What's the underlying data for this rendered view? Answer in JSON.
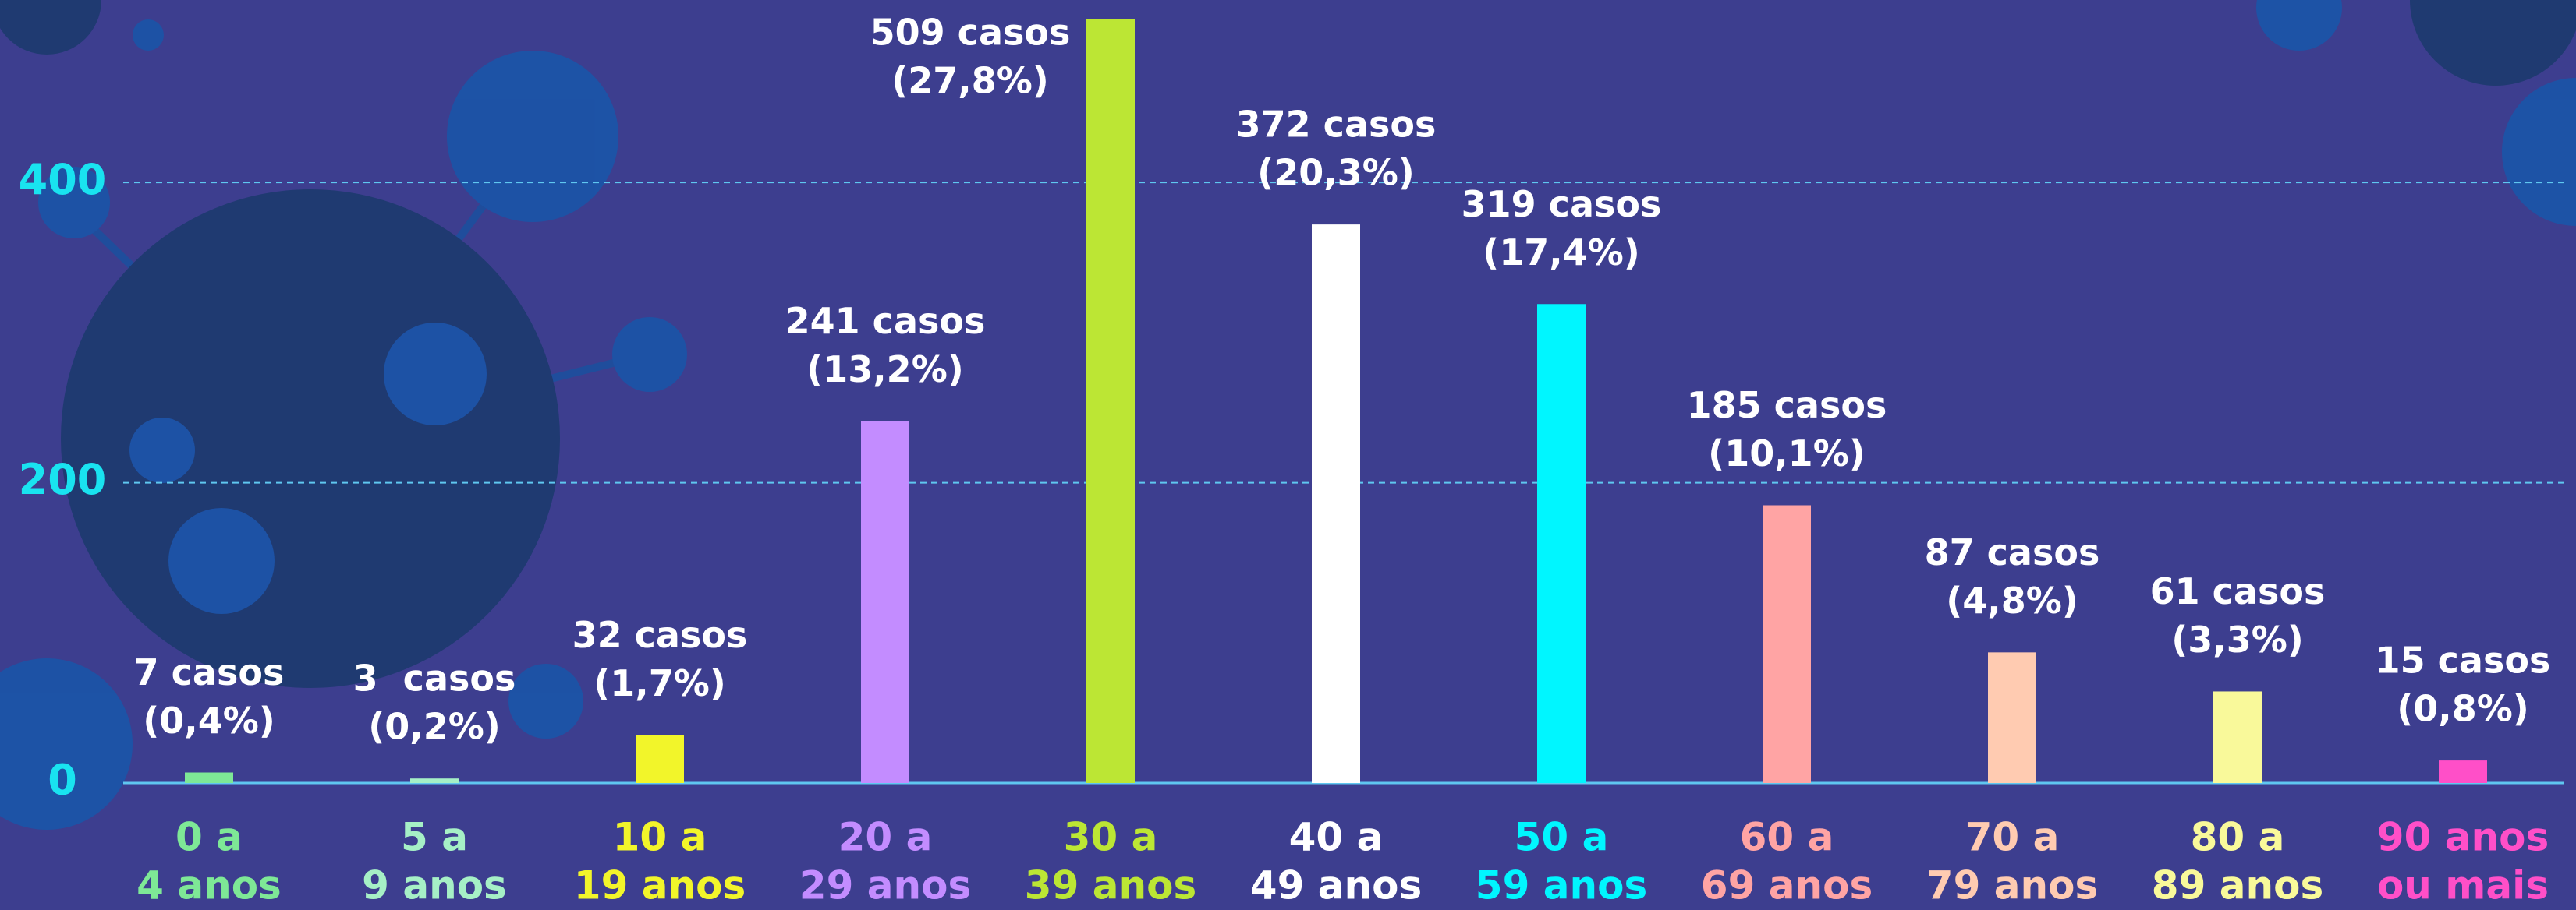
{
  "chart_data": {
    "type": "bar",
    "categories": [
      [
        "0 a",
        "4 anos"
      ],
      [
        "5 a",
        "9 anos"
      ],
      [
        "10 a",
        "19 anos"
      ],
      [
        "20 a",
        "29 anos"
      ],
      [
        "30 a",
        "39 anos"
      ],
      [
        "40 a",
        "49 anos"
      ],
      [
        "50 a",
        "59 anos"
      ],
      [
        "60 a",
        "69 anos"
      ],
      [
        "70 a",
        "79 anos"
      ],
      [
        "80 a",
        "89 anos"
      ],
      [
        "90 anos",
        "ou mais"
      ]
    ],
    "values": [
      7,
      3,
      32,
      241,
      509,
      372,
      319,
      185,
      87,
      61,
      15
    ],
    "value_labels": [
      [
        "7 casos",
        "(0,4%)"
      ],
      [
        "3  casos",
        "(0,2%)"
      ],
      [
        "32 casos",
        "(1,7%)"
      ],
      [
        "241 casos",
        "(13,2%)"
      ],
      [
        "509 casos",
        "(27,8%)"
      ],
      [
        "372 casos",
        "(20,3%)"
      ],
      [
        "319 casos",
        "(17,4%)"
      ],
      [
        "185 casos",
        "(10,1%)"
      ],
      [
        "87 casos",
        "(4,8%)"
      ],
      [
        "61 casos",
        "(3,3%)"
      ],
      [
        "15 casos",
        "(0,8%)"
      ]
    ],
    "colors": [
      "#7ee896",
      "#a6f0c6",
      "#f2f52a",
      "#c38cff",
      "#bce634",
      "#ffffff",
      "#00f6ff",
      "#ffa4a4",
      "#ffcbb1",
      "#f9f99a",
      "#ff4fc8"
    ],
    "ylim": [
      0,
      521
    ],
    "yticks": [
      0,
      200,
      400
    ],
    "grid": true
  }
}
